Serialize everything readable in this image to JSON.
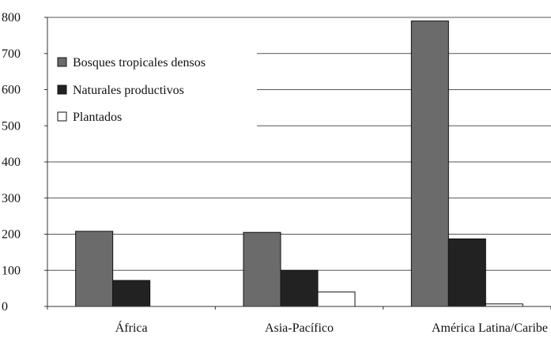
{
  "colors": {
    "series1": "#6b6b6b",
    "series2": "#222222",
    "series3": "#ffffff",
    "gridline": "#555555",
    "axis": "#333333"
  },
  "chart_data": {
    "type": "bar",
    "title": "",
    "xlabel": "",
    "ylabel": "",
    "categories": [
      "África",
      "Asia-Pacífico",
      "América Latina/Caribe"
    ],
    "series": [
      {
        "name": "Bosques tropicales densos",
        "values": [
          208,
          205,
          790
        ]
      },
      {
        "name": "Naturales productivos",
        "values": [
          72,
          100,
          187
        ]
      },
      {
        "name": "Plantados",
        "values": [
          0,
          40,
          7
        ]
      }
    ],
    "ylim": [
      0,
      800
    ],
    "yticks": [
      0,
      100,
      200,
      300,
      400,
      500,
      600,
      700,
      800
    ],
    "grid": true,
    "legend_position": "top-left"
  }
}
